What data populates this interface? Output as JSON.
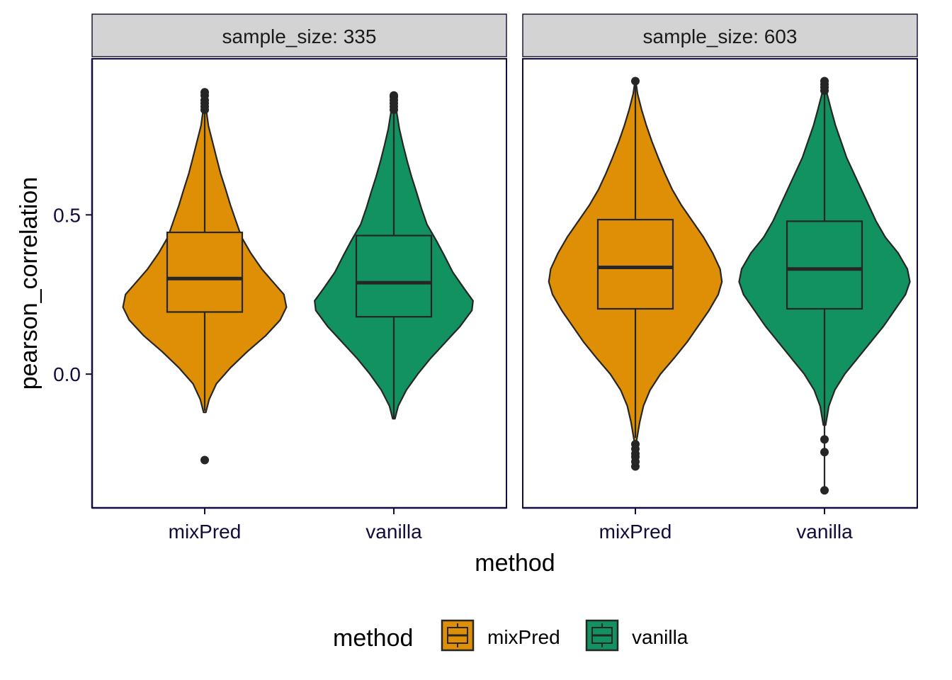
{
  "chart_data": {
    "type": "violin",
    "title": "",
    "xlabel": "method",
    "ylabel": "pearson_correlation",
    "categories": [
      "mixPred",
      "vanilla"
    ],
    "y_ticks": [
      0.0,
      0.5
    ],
    "y_tick_labels": [
      "0.0",
      "0.5"
    ],
    "ylim": [
      -0.42,
      0.99
    ],
    "grid": false,
    "legend": {
      "title": "method",
      "position": "bottom",
      "entries": [
        {
          "label": "mixPred",
          "color": "#DE8F05"
        },
        {
          "label": "vanilla",
          "color": "#129261"
        }
      ]
    },
    "panels": [
      {
        "strip_label": "sample_size: 335",
        "series": [
          {
            "method": "mixPred",
            "color": "#DE8F05",
            "box": {
              "q1": 0.195,
              "median": 0.3,
              "q3": 0.445,
              "whisker_low": -0.115,
              "whisker_high": 0.82
            },
            "outliers": [
              -0.27,
              0.83,
              0.84,
              0.85,
              0.86,
              0.875,
              0.885
            ],
            "violin": [
              [
                -0.12,
                0.003
              ],
              [
                -0.08,
                0.012
              ],
              [
                -0.03,
                0.032
              ],
              [
                0.02,
                0.07
              ],
              [
                0.07,
                0.115
              ],
              [
                0.12,
                0.165
              ],
              [
                0.17,
                0.205
              ],
              [
                0.21,
                0.222
              ],
              [
                0.25,
                0.215
              ],
              [
                0.29,
                0.185
              ],
              [
                0.33,
                0.155
              ],
              [
                0.38,
                0.125
              ],
              [
                0.43,
                0.1
              ],
              [
                0.48,
                0.085
              ],
              [
                0.53,
                0.07
              ],
              [
                0.58,
                0.057
              ],
              [
                0.63,
                0.043
              ],
              [
                0.68,
                0.032
              ],
              [
                0.73,
                0.021
              ],
              [
                0.78,
                0.01
              ],
              [
                0.83,
                0.004
              ],
              [
                0.88,
                0.001
              ]
            ]
          },
          {
            "method": "vanilla",
            "color": "#129261",
            "box": {
              "q1": 0.18,
              "median": 0.287,
              "q3": 0.435,
              "whisker_low": -0.14,
              "whisker_high": 0.82
            },
            "outliers": [
              0.83,
              0.84,
              0.85,
              0.86,
              0.87,
              0.875
            ],
            "violin": [
              [
                -0.14,
                0.003
              ],
              [
                -0.1,
                0.012
              ],
              [
                -0.05,
                0.034
              ],
              [
                0.0,
                0.065
              ],
              [
                0.05,
                0.1
              ],
              [
                0.1,
                0.14
              ],
              [
                0.15,
                0.18
              ],
              [
                0.2,
                0.212
              ],
              [
                0.23,
                0.215
              ],
              [
                0.27,
                0.19
              ],
              [
                0.32,
                0.16
              ],
              [
                0.37,
                0.138
              ],
              [
                0.42,
                0.115
              ],
              [
                0.47,
                0.09
              ],
              [
                0.52,
                0.075
              ],
              [
                0.57,
                0.062
              ],
              [
                0.62,
                0.048
              ],
              [
                0.67,
                0.036
              ],
              [
                0.72,
                0.025
              ],
              [
                0.77,
                0.015
              ],
              [
                0.82,
                0.008
              ],
              [
                0.875,
                0.002
              ]
            ]
          }
        ]
      },
      {
        "strip_label": "sample_size: 603",
        "series": [
          {
            "method": "mixPred",
            "color": "#DE8F05",
            "box": {
              "q1": 0.205,
              "median": 0.335,
              "q3": 0.485,
              "whisker_low": -0.2,
              "whisker_high": 0.92
            },
            "outliers": [
              -0.22,
              -0.235,
              -0.25,
              -0.26,
              -0.275,
              -0.29,
              0.92
            ],
            "violin": [
              [
                -0.21,
                0.003
              ],
              [
                -0.15,
                0.012
              ],
              [
                -0.1,
                0.022
              ],
              [
                -0.05,
                0.04
              ],
              [
                0.0,
                0.068
              ],
              [
                0.05,
                0.105
              ],
              [
                0.1,
                0.14
              ],
              [
                0.15,
                0.17
              ],
              [
                0.2,
                0.2
              ],
              [
                0.25,
                0.225
              ],
              [
                0.29,
                0.235
              ],
              [
                0.33,
                0.23
              ],
              [
                0.38,
                0.21
              ],
              [
                0.43,
                0.185
              ],
              [
                0.48,
                0.155
              ],
              [
                0.53,
                0.125
              ],
              [
                0.58,
                0.1
              ],
              [
                0.63,
                0.08
              ],
              [
                0.68,
                0.062
              ],
              [
                0.73,
                0.045
              ],
              [
                0.78,
                0.03
              ],
              [
                0.83,
                0.017
              ],
              [
                0.88,
                0.006
              ],
              [
                0.92,
                0.001
              ]
            ]
          },
          {
            "method": "vanilla",
            "color": "#129261",
            "box": {
              "q1": 0.205,
              "median": 0.33,
              "q3": 0.48,
              "whisker_low": -0.36,
              "whisker_high": 0.9
            },
            "outliers": [
              -0.205,
              -0.245,
              -0.365,
              0.89,
              0.9,
              0.91,
              0.92
            ],
            "violin": [
              [
                -0.16,
                0.003
              ],
              [
                -0.1,
                0.012
              ],
              [
                -0.05,
                0.028
              ],
              [
                0.0,
                0.055
              ],
              [
                0.05,
                0.09
              ],
              [
                0.1,
                0.125
              ],
              [
                0.15,
                0.16
              ],
              [
                0.2,
                0.19
              ],
              [
                0.25,
                0.22
              ],
              [
                0.29,
                0.232
              ],
              [
                0.33,
                0.225
              ],
              [
                0.38,
                0.2
              ],
              [
                0.43,
                0.165
              ],
              [
                0.48,
                0.14
              ],
              [
                0.53,
                0.12
              ],
              [
                0.58,
                0.1
              ],
              [
                0.63,
                0.08
              ],
              [
                0.68,
                0.06
              ],
              [
                0.73,
                0.045
              ],
              [
                0.78,
                0.03
              ],
              [
                0.83,
                0.018
              ],
              [
                0.88,
                0.007
              ],
              [
                0.92,
                0.001
              ]
            ]
          }
        ]
      }
    ]
  }
}
